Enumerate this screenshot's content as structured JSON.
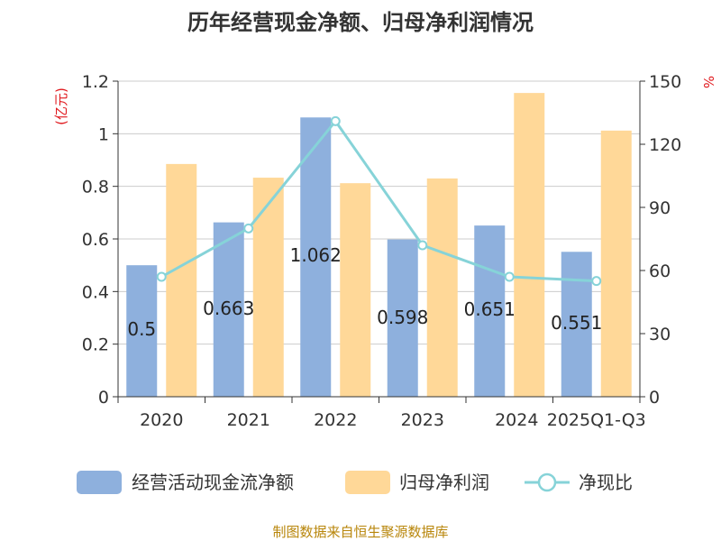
{
  "chart_data": {
    "type": "bar",
    "title": "历年经营现金净额、归母净利润情况",
    "categories": [
      "2020",
      "2021",
      "2022",
      "2023",
      "2024",
      "2025Q1-Q3"
    ],
    "series": [
      {
        "name": "经营活动现金流净额",
        "type": "bar",
        "axis": "left",
        "color": "#8eb0dd",
        "values": [
          0.5,
          0.663,
          1.062,
          0.598,
          0.651,
          0.551
        ],
        "labels": [
          "0.5",
          "0.663",
          "1.062",
          "0.598",
          "0.651",
          "0.551"
        ]
      },
      {
        "name": "归母净利润",
        "type": "bar",
        "axis": "left",
        "color": "#ffd898",
        "values": [
          0.885,
          0.833,
          0.812,
          0.83,
          1.155,
          1.012
        ]
      },
      {
        "name": "净现比",
        "type": "line",
        "axis": "right",
        "color": "#86d3d8",
        "values": [
          57,
          80,
          131,
          72,
          57,
          55
        ]
      }
    ],
    "left_axis": {
      "unit": "(亿元)",
      "ylim": [
        0,
        1.2
      ],
      "ticks": [
        "0",
        "0.2",
        "0.4",
        "0.6",
        "0.8",
        "1",
        "1.2"
      ]
    },
    "right_axis": {
      "unit": "%",
      "ylim": [
        0,
        150
      ],
      "ticks": [
        "0",
        "30",
        "60",
        "90",
        "120",
        "150"
      ]
    },
    "grid": true,
    "legend_position": "bottom"
  },
  "source_text": "制图数据来自恒生聚源数据库"
}
